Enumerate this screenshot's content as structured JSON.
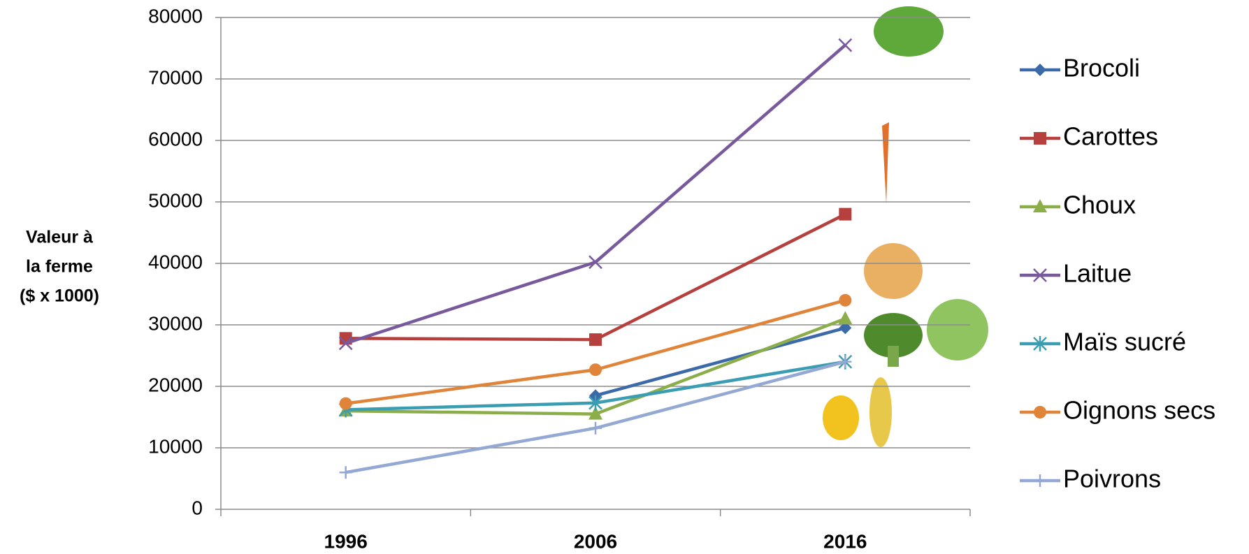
{
  "chart_data": {
    "type": "line",
    "y_label": [
      "Valeur à",
      "la ferme",
      "($ x 1000)"
    ],
    "categories": [
      "1996",
      "2006",
      "2016"
    ],
    "series": [
      {
        "name": "Brocoli",
        "color": "#3c6aa8",
        "marker": "diamond",
        "values": [
          null,
          18500,
          29500
        ]
      },
      {
        "name": "Carottes",
        "color": "#b5403e",
        "marker": "square",
        "values": [
          27800,
          27600,
          48000
        ]
      },
      {
        "name": "Choux",
        "color": "#8cae4a",
        "marker": "triangle",
        "values": [
          16000,
          15500,
          31000
        ]
      },
      {
        "name": "Laitue",
        "color": "#78599c",
        "marker": "x",
        "values": [
          27000,
          40200,
          75500
        ]
      },
      {
        "name": "Maïs sucré",
        "color": "#3b9db2",
        "marker": "asterisk",
        "values": [
          16200,
          17300,
          24000
        ]
      },
      {
        "name": "Oignons secs",
        "color": "#e0843a",
        "marker": "circle",
        "values": [
          17200,
          22700,
          34000
        ]
      },
      {
        "name": "Poivrons",
        "color": "#93a8d3",
        "marker": "plus",
        "values": [
          6000,
          13200,
          24000
        ]
      }
    ],
    "ylim": [
      0,
      80000
    ],
    "yticks": [
      0,
      10000,
      20000,
      30000,
      40000,
      50000,
      60000,
      70000,
      80000
    ],
    "grid": true,
    "legend": "right"
  }
}
